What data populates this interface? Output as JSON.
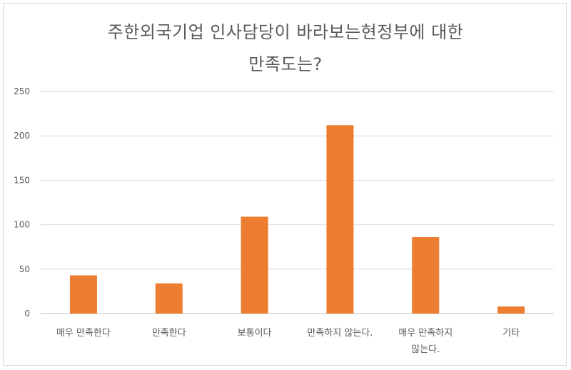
{
  "chart_data": {
    "type": "bar",
    "title_lines": [
      "주한외국기업 인사담당이 바라보는현정부에 대한",
      "만족도는?"
    ],
    "categories": [
      [
        "매우 만족한다"
      ],
      [
        "만족한다"
      ],
      [
        "보통이다"
      ],
      [
        "만족하지 않는다."
      ],
      [
        "매우 만족하지",
        "않는다."
      ],
      [
        "기타"
      ]
    ],
    "values": [
      43,
      34,
      109,
      212,
      86,
      8
    ],
    "ylim": [
      0,
      250
    ],
    "yticks": [
      0,
      50,
      100,
      150,
      200,
      250
    ],
    "grid": true,
    "legend": "none",
    "bar_color": "#ED7D31",
    "grid_color": "#d9d9d9",
    "text_color": "#595959"
  }
}
